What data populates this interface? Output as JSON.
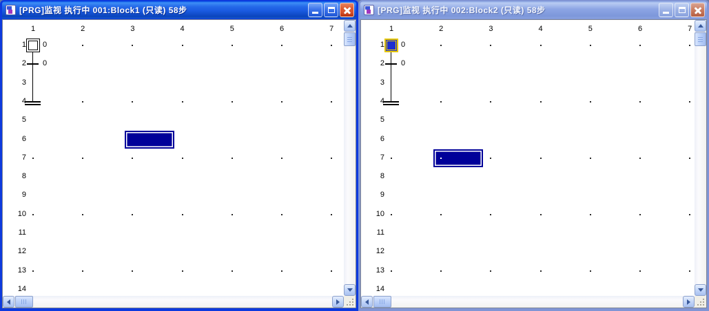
{
  "windows": [
    {
      "title": "[PRG]监视 执行中 001:Block1 (只读) 58步",
      "state": "active",
      "column_labels": [
        "1",
        "2",
        "3",
        "4",
        "5",
        "6",
        "7"
      ],
      "row_labels": [
        "1",
        "2",
        "3",
        "4",
        "5",
        "6",
        "7",
        "8",
        "9",
        "10",
        "11",
        "12",
        "13",
        "14"
      ],
      "dot_rows": [
        1,
        4,
        7,
        10,
        13
      ],
      "dot_skip_cells": [
        "1-1",
        "4-1"
      ],
      "sfc": {
        "step_number": "0",
        "step_active": false,
        "transition_number": "0",
        "cursor_cell": {
          "row": 6,
          "col": 3
        }
      }
    },
    {
      "title": "[PRG]监视 执行中 002:Block2 (只读) 58步",
      "state": "inactive",
      "column_labels": [
        "1",
        "2",
        "3",
        "4",
        "5",
        "6",
        "7"
      ],
      "row_labels": [
        "1",
        "2",
        "3",
        "4",
        "5",
        "6",
        "7",
        "8",
        "9",
        "10",
        "11",
        "12",
        "13",
        "14"
      ],
      "dot_rows": [
        1,
        4,
        7,
        10,
        13
      ],
      "dot_skip_cells": [
        "1-1",
        "4-1"
      ],
      "sfc": {
        "step_number": "0",
        "step_active": true,
        "transition_number": "0",
        "cursor_cell": {
          "row": 7,
          "col": 2
        }
      }
    }
  ],
  "icons": {
    "titlebar_icon": "sfc-program-icon",
    "minimize": "minimize-icon",
    "maximize": "maximize-icon",
    "close": "close-icon",
    "scroll_arrows": [
      "arrow-up-icon",
      "arrow-down-icon",
      "arrow-left-icon",
      "arrow-right-icon"
    ]
  },
  "colors": {
    "active_title_mid": "#1a5ae0",
    "inactive_title_mid": "#8ca5e4",
    "close_red": "#d5502c",
    "cursor_blue": "#000099",
    "active_step_fill": "#1d2fd0",
    "active_step_outline": "#e8c800"
  }
}
